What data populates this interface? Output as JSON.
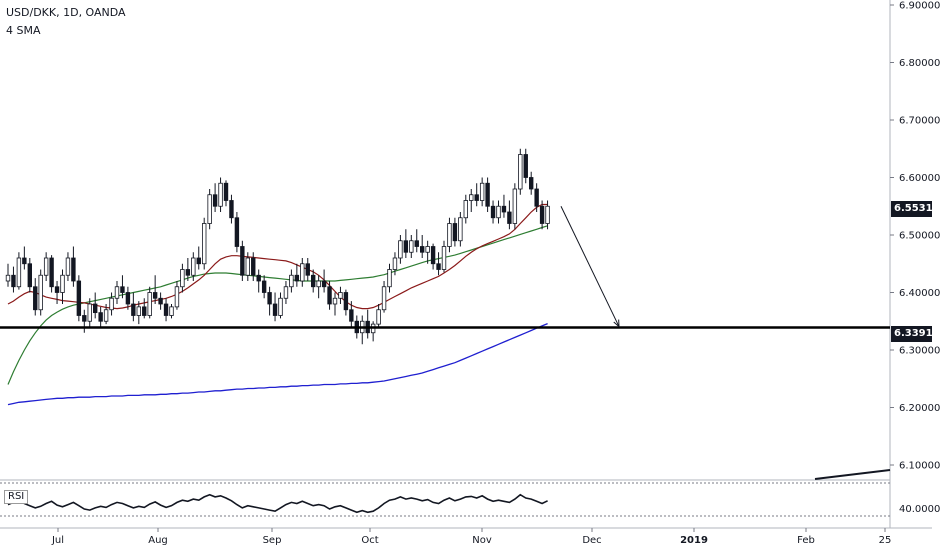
{
  "header": {
    "symbol_line": "USD/DKK, 1D, OANDA",
    "indicator_line": "4 SMA"
  },
  "rsi": {
    "label": "RSI",
    "level_label": "40.0000"
  },
  "price_tags": {
    "current": "6.55314",
    "support": "6.33914"
  },
  "colors": {
    "background": "#ffffff",
    "up_candle": "#ffffff",
    "down_candle": "#131722",
    "sma_fast": "#8b1a1a",
    "sma_mid": "#2e7d32",
    "sma_slow": "#1f1fd0",
    "support_line": "#000000",
    "grid": "#e6e6e6"
  },
  "chart_data": {
    "type": "candlestick",
    "symbol": "USD/DKK",
    "interval": "1D",
    "source": "OANDA",
    "ylim": [
      6.1,
      6.9
    ],
    "y_ticks": [
      "6.90000",
      "6.80000",
      "6.70000",
      "6.60000",
      "6.50000",
      "6.40000",
      "6.30000",
      "6.20000",
      "6.10000"
    ],
    "x_ticks": [
      "Jul",
      "Aug",
      "Sep",
      "Oct",
      "Nov",
      "Dec",
      "2019",
      "Feb",
      "25"
    ],
    "support_level": 6.33914,
    "last_price": 6.55314,
    "projection_target": 6.339,
    "ohlc": [
      [
        6.42,
        6.45,
        6.41,
        6.43
      ],
      [
        6.43,
        6.445,
        6.4,
        6.41
      ],
      [
        6.41,
        6.47,
        6.405,
        6.46
      ],
      [
        6.46,
        6.48,
        6.44,
        6.45
      ],
      [
        6.45,
        6.46,
        6.4,
        6.41
      ],
      [
        6.41,
        6.425,
        6.36,
        6.37
      ],
      [
        6.37,
        6.44,
        6.36,
        6.43
      ],
      [
        6.43,
        6.47,
        6.42,
        6.46
      ],
      [
        6.46,
        6.465,
        6.4,
        6.41
      ],
      [
        6.41,
        6.42,
        6.38,
        6.4
      ],
      [
        6.4,
        6.44,
        6.38,
        6.43
      ],
      [
        6.43,
        6.47,
        6.42,
        6.46
      ],
      [
        6.46,
        6.48,
        6.41,
        6.42
      ],
      [
        6.42,
        6.43,
        6.35,
        6.36
      ],
      [
        6.36,
        6.37,
        6.33,
        6.35
      ],
      [
        6.35,
        6.39,
        6.34,
        6.38
      ],
      [
        6.38,
        6.4,
        6.355,
        6.365
      ],
      [
        6.365,
        6.375,
        6.34,
        6.35
      ],
      [
        6.35,
        6.38,
        6.345,
        6.37
      ],
      [
        6.37,
        6.4,
        6.36,
        6.39
      ],
      [
        6.39,
        6.42,
        6.38,
        6.41
      ],
      [
        6.41,
        6.43,
        6.39,
        6.4
      ],
      [
        6.4,
        6.41,
        6.37,
        6.38
      ],
      [
        6.38,
        6.4,
        6.35,
        6.36
      ],
      [
        6.36,
        6.385,
        6.345,
        6.375
      ],
      [
        6.375,
        6.39,
        6.355,
        6.36
      ],
      [
        6.36,
        6.41,
        6.355,
        6.4
      ],
      [
        6.4,
        6.43,
        6.38,
        6.39
      ],
      [
        6.39,
        6.4,
        6.37,
        6.38
      ],
      [
        6.38,
        6.39,
        6.35,
        6.36
      ],
      [
        6.36,
        6.38,
        6.355,
        6.375
      ],
      [
        6.375,
        6.42,
        6.37,
        6.41
      ],
      [
        6.41,
        6.45,
        6.4,
        6.44
      ],
      [
        6.44,
        6.46,
        6.42,
        6.43
      ],
      [
        6.43,
        6.47,
        6.42,
        6.46
      ],
      [
        6.46,
        6.48,
        6.44,
        6.45
      ],
      [
        6.45,
        6.53,
        6.44,
        6.52
      ],
      [
        6.52,
        6.58,
        6.51,
        6.57
      ],
      [
        6.57,
        6.59,
        6.54,
        6.55
      ],
      [
        6.55,
        6.6,
        6.54,
        6.59
      ],
      [
        6.59,
        6.595,
        6.55,
        6.56
      ],
      [
        6.56,
        6.57,
        6.52,
        6.53
      ],
      [
        6.53,
        6.54,
        6.47,
        6.48
      ],
      [
        6.48,
        6.49,
        6.42,
        6.43
      ],
      [
        6.43,
        6.47,
        6.42,
        6.46
      ],
      [
        6.46,
        6.47,
        6.42,
        6.43
      ],
      [
        6.43,
        6.44,
        6.4,
        6.42
      ],
      [
        6.42,
        6.43,
        6.39,
        6.4
      ],
      [
        6.4,
        6.41,
        6.36,
        6.38
      ],
      [
        6.38,
        6.4,
        6.35,
        6.36
      ],
      [
        6.36,
        6.4,
        6.355,
        6.39
      ],
      [
        6.39,
        6.42,
        6.38,
        6.41
      ],
      [
        6.41,
        6.44,
        6.4,
        6.43
      ],
      [
        6.43,
        6.45,
        6.41,
        6.42
      ],
      [
        6.42,
        6.46,
        6.41,
        6.45
      ],
      [
        6.45,
        6.46,
        6.42,
        6.43
      ],
      [
        6.43,
        6.44,
        6.4,
        6.41
      ],
      [
        6.41,
        6.43,
        6.39,
        6.42
      ],
      [
        6.42,
        6.44,
        6.4,
        6.41
      ],
      [
        6.41,
        6.42,
        6.37,
        6.38
      ],
      [
        6.38,
        6.4,
        6.36,
        6.39
      ],
      [
        6.39,
        6.41,
        6.38,
        6.4
      ],
      [
        6.4,
        6.405,
        6.36,
        6.37
      ],
      [
        6.37,
        6.385,
        6.34,
        6.35
      ],
      [
        6.35,
        6.36,
        6.32,
        6.33
      ],
      [
        6.33,
        6.36,
        6.31,
        6.35
      ],
      [
        6.35,
        6.37,
        6.32,
        6.33
      ],
      [
        6.33,
        6.35,
        6.315,
        6.345
      ],
      [
        6.345,
        6.38,
        6.34,
        6.37
      ],
      [
        6.37,
        6.42,
        6.365,
        6.41
      ],
      [
        6.41,
        6.45,
        6.4,
        6.44
      ],
      [
        6.44,
        6.47,
        6.43,
        6.46
      ],
      [
        6.46,
        6.5,
        6.45,
        6.49
      ],
      [
        6.49,
        6.51,
        6.46,
        6.47
      ],
      [
        6.47,
        6.5,
        6.46,
        6.49
      ],
      [
        6.49,
        6.51,
        6.47,
        6.48
      ],
      [
        6.48,
        6.5,
        6.46,
        6.47
      ],
      [
        6.47,
        6.49,
        6.45,
        6.48
      ],
      [
        6.48,
        6.485,
        6.44,
        6.45
      ],
      [
        6.45,
        6.47,
        6.43,
        6.44
      ],
      [
        6.44,
        6.49,
        6.435,
        6.48
      ],
      [
        6.48,
        6.53,
        6.47,
        6.52
      ],
      [
        6.52,
        6.53,
        6.48,
        6.49
      ],
      [
        6.49,
        6.54,
        6.48,
        6.53
      ],
      [
        6.53,
        6.57,
        6.52,
        6.56
      ],
      [
        6.56,
        6.58,
        6.54,
        6.57
      ],
      [
        6.57,
        6.59,
        6.55,
        6.56
      ],
      [
        6.56,
        6.6,
        6.55,
        6.59
      ],
      [
        6.59,
        6.6,
        6.54,
        6.55
      ],
      [
        6.55,
        6.56,
        6.52,
        6.53
      ],
      [
        6.53,
        6.56,
        6.52,
        6.55
      ],
      [
        6.55,
        6.57,
        6.53,
        6.54
      ],
      [
        6.54,
        6.56,
        6.51,
        6.52
      ],
      [
        6.52,
        6.59,
        6.51,
        6.58
      ],
      [
        6.58,
        6.65,
        6.57,
        6.64
      ],
      [
        6.64,
        6.65,
        6.59,
        6.6
      ],
      [
        6.6,
        6.61,
        6.57,
        6.58
      ],
      [
        6.58,
        6.59,
        6.54,
        6.55
      ],
      [
        6.55,
        6.56,
        6.51,
        6.52
      ],
      [
        6.52,
        6.56,
        6.51,
        6.55
      ]
    ],
    "sma_fast": [
      6.38,
      6.385,
      6.392,
      6.398,
      6.402,
      6.4,
      6.396,
      6.392,
      6.39,
      6.388,
      6.386,
      6.385,
      6.384,
      6.383,
      6.382,
      6.38,
      6.378,
      6.376,
      6.374,
      6.373,
      6.372,
      6.373,
      6.375,
      6.378,
      6.38,
      6.382,
      6.384,
      6.386,
      6.388,
      6.39,
      6.393,
      6.397,
      6.402,
      6.408,
      6.415,
      6.422,
      6.43,
      6.44,
      6.45,
      6.458,
      6.462,
      6.464,
      6.464,
      6.463,
      6.462,
      6.461,
      6.46,
      6.459,
      6.458,
      6.457,
      6.456,
      6.455,
      6.452,
      6.448,
      6.444,
      6.44,
      6.436,
      6.43,
      6.422,
      6.412,
      6.402,
      6.392,
      6.384,
      6.378,
      6.374,
      6.372,
      6.372,
      6.374,
      6.378,
      6.383,
      6.388,
      6.393,
      6.398,
      6.403,
      6.408,
      6.412,
      6.416,
      6.42,
      6.424,
      6.428,
      6.434,
      6.44,
      6.447,
      6.455,
      6.463,
      6.47,
      6.476,
      6.481,
      6.485,
      6.489,
      6.493,
      6.497,
      6.502,
      6.51,
      6.52,
      6.53,
      6.54,
      6.548,
      6.553,
      6.553
    ],
    "sma_mid": [
      6.24,
      6.262,
      6.282,
      6.3,
      6.316,
      6.33,
      6.342,
      6.352,
      6.36,
      6.366,
      6.371,
      6.375,
      6.378,
      6.38,
      6.382,
      6.384,
      6.386,
      6.388,
      6.39,
      6.392,
      6.394,
      6.396,
      6.398,
      6.4,
      6.402,
      6.404,
      6.406,
      6.408,
      6.41,
      6.413,
      6.416,
      6.419,
      6.422,
      6.425,
      6.428,
      6.43,
      6.432,
      6.433,
      6.434,
      6.434,
      6.434,
      6.433,
      6.432,
      6.431,
      6.43,
      6.429,
      6.428,
      6.427,
      6.426,
      6.425,
      6.424,
      6.423,
      6.422,
      6.421,
      6.42,
      6.42,
      6.42,
      6.42,
      6.42,
      6.42,
      6.42,
      6.421,
      6.422,
      6.423,
      6.424,
      6.425,
      6.426,
      6.427,
      6.429,
      6.431,
      6.434,
      6.437,
      6.44,
      6.443,
      6.446,
      6.449,
      6.452,
      6.455,
      6.457,
      6.459,
      6.461,
      6.463,
      6.465,
      6.468,
      6.471,
      6.474,
      6.477,
      6.48,
      6.483,
      6.486,
      6.489,
      6.492,
      6.495,
      6.498,
      6.501,
      6.504,
      6.507,
      6.51,
      6.513,
      6.516
    ],
    "sma_slow": [
      6.205,
      6.207,
      6.209,
      6.21,
      6.211,
      6.212,
      6.213,
      6.214,
      6.215,
      6.216,
      6.216,
      6.217,
      6.217,
      6.218,
      6.218,
      6.218,
      6.219,
      6.219,
      6.219,
      6.22,
      6.22,
      6.22,
      6.221,
      6.221,
      6.221,
      6.222,
      6.222,
      6.222,
      6.223,
      6.223,
      6.224,
      6.224,
      6.225,
      6.225,
      6.226,
      6.227,
      6.227,
      6.228,
      6.229,
      6.229,
      6.23,
      6.231,
      6.232,
      6.232,
      6.233,
      6.233,
      6.234,
      6.234,
      6.235,
      6.235,
      6.236,
      6.236,
      6.237,
      6.237,
      6.238,
      6.238,
      6.239,
      6.239,
      6.24,
      6.24,
      6.24,
      6.241,
      6.241,
      6.242,
      6.242,
      6.243,
      6.243,
      6.244,
      6.245,
      6.246,
      6.248,
      6.25,
      6.252,
      6.254,
      6.256,
      6.258,
      6.26,
      6.263,
      6.266,
      6.269,
      6.272,
      6.275,
      6.278,
      6.282,
      6.286,
      6.29,
      6.294,
      6.298,
      6.302,
      6.306,
      6.31,
      6.314,
      6.318,
      6.322,
      6.326,
      6.33,
      6.334,
      6.338,
      6.342,
      6.346
    ],
    "rsi_values": [
      48,
      52,
      55,
      50,
      46,
      42,
      45,
      50,
      54,
      47,
      44,
      48,
      52,
      46,
      40,
      38,
      42,
      45,
      43,
      48,
      52,
      50,
      46,
      42,
      45,
      43,
      49,
      53,
      47,
      43,
      46,
      52,
      56,
      54,
      58,
      56,
      62,
      66,
      62,
      64,
      60,
      55,
      48,
      42,
      46,
      44,
      42,
      40,
      38,
      36,
      42,
      48,
      52,
      50,
      54,
      50,
      46,
      48,
      46,
      40,
      44,
      46,
      42,
      38,
      34,
      37,
      34,
      36,
      42,
      50,
      56,
      58,
      62,
      58,
      60,
      58,
      55,
      57,
      52,
      50,
      56,
      60,
      55,
      58,
      62,
      63,
      60,
      64,
      58,
      54,
      56,
      54,
      52,
      58,
      66,
      60,
      58,
      54,
      50,
      55
    ]
  }
}
